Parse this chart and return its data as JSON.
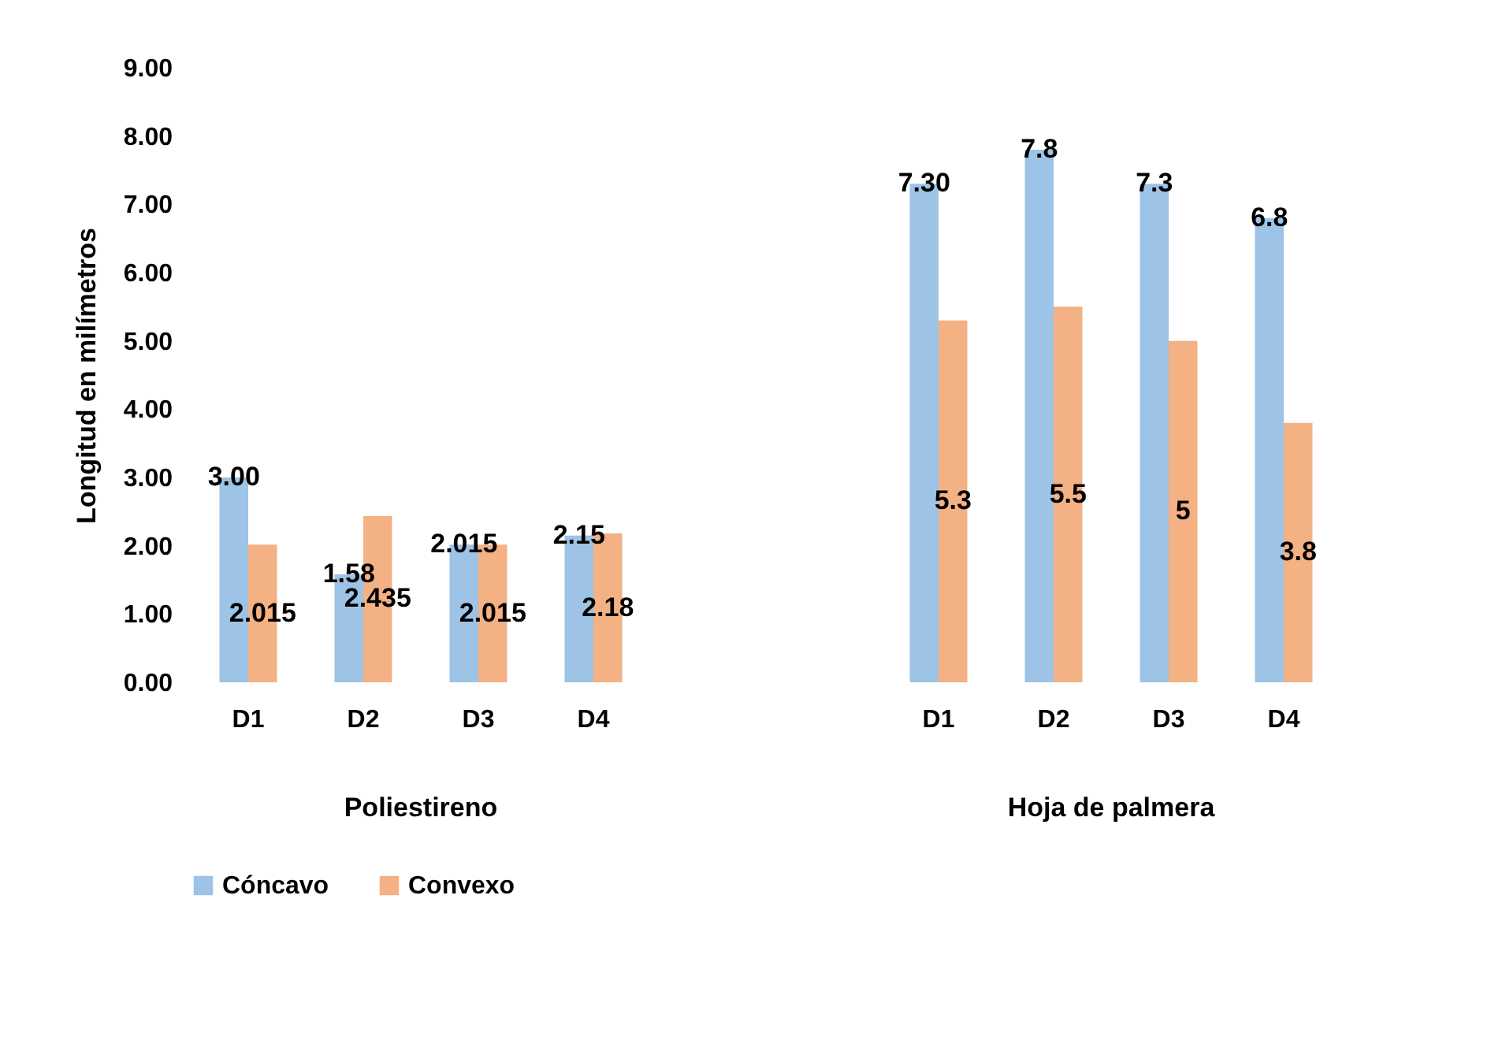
{
  "chart_data": {
    "type": "bar",
    "ylabel": "Longitud en milímetros",
    "categories": [
      "D1",
      "D2",
      "D3",
      "D4",
      null,
      null,
      "D1",
      "D2",
      "D3",
      "D4"
    ],
    "series": [
      {
        "name": "Cóncavo",
        "color": "#9dc3e6",
        "values": [
          3.0,
          1.58,
          2.015,
          2.15,
          null,
          null,
          7.3,
          7.8,
          7.3,
          6.8
        ],
        "value_labels": [
          "3.00",
          "1.58",
          "2.015",
          "2.15",
          null,
          null,
          "7.30",
          "7.8",
          "7.3",
          "6.8"
        ]
      },
      {
        "name": "Convexo",
        "color": "#f4b183",
        "values": [
          2.015,
          2.435,
          2.015,
          2.18,
          null,
          null,
          5.3,
          5.5,
          5,
          3.8
        ],
        "value_labels": [
          "2.015",
          "2.435",
          "2.015",
          "2.18",
          null,
          null,
          "5.3",
          "5.5",
          "5",
          "3.8"
        ]
      }
    ],
    "ylim": [
      0,
      9
    ],
    "yticks": [
      {
        "value": 0,
        "label": "0.00"
      },
      {
        "value": 1,
        "label": "1.00"
      },
      {
        "value": 2,
        "label": "2.00"
      },
      {
        "value": 3,
        "label": "3.00"
      },
      {
        "value": 4,
        "label": "4.00"
      },
      {
        "value": 5,
        "label": "5.00"
      },
      {
        "value": 6,
        "label": "6.00"
      },
      {
        "value": 7,
        "label": "7.00"
      },
      {
        "value": 8,
        "label": "8.00"
      },
      {
        "value": 9,
        "label": "9.00"
      }
    ],
    "annotations": [
      "Poliestireno",
      "Hoja de palmera"
    ],
    "legend": "bottom"
  }
}
